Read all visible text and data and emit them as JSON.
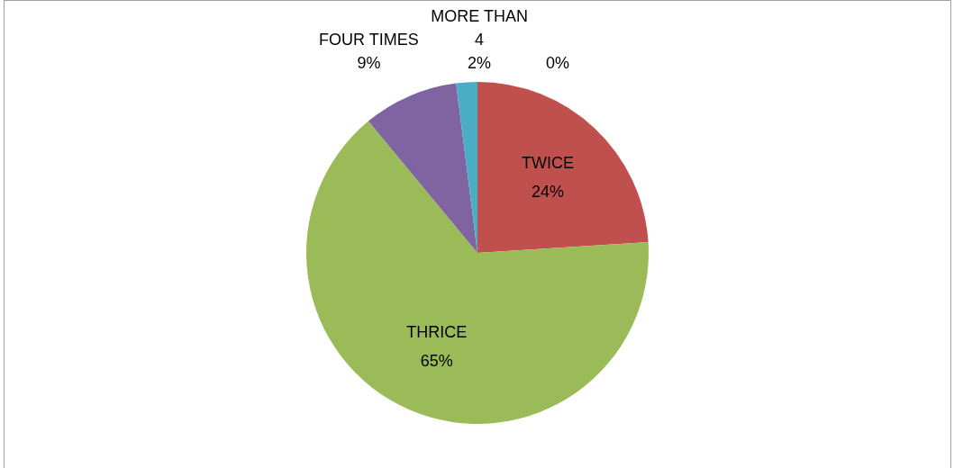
{
  "chart_data": {
    "type": "pie",
    "categories": [
      null,
      "TWICE",
      "THRICE",
      "FOUR TIMES",
      "MORE THAN 4"
    ],
    "values": [
      0,
      24,
      65,
      9,
      2
    ],
    "colors": [
      "#4f81bd",
      "#c0504d",
      "#9bbb59",
      "#8064a2",
      "#4bacc6"
    ],
    "value_labels": [
      "0%",
      "24%",
      "65%",
      "9%",
      "2%"
    ],
    "data_labels": true,
    "legend": false
  }
}
